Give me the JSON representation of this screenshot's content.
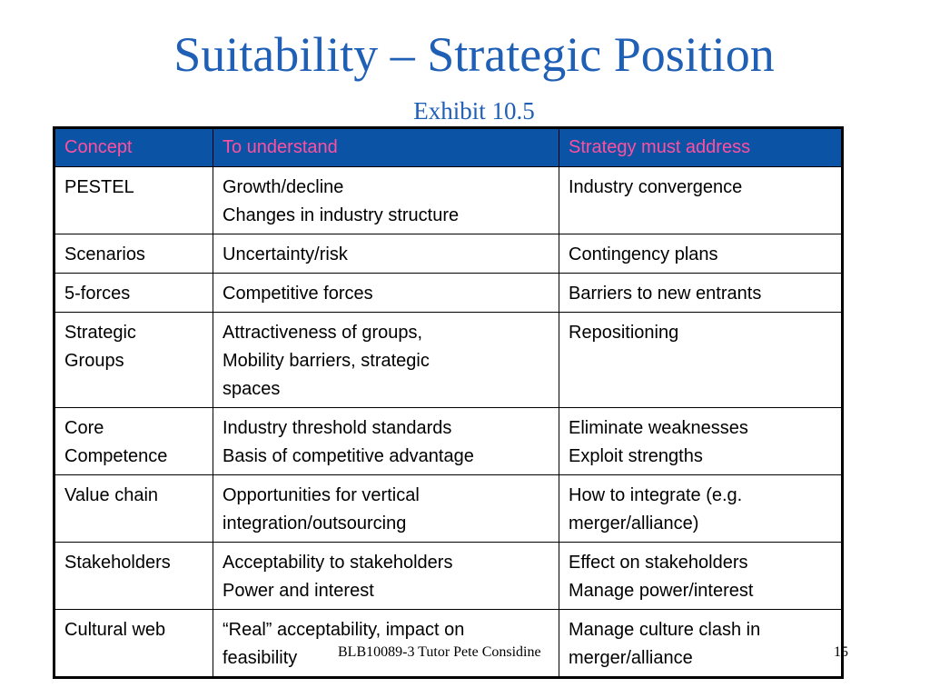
{
  "slide": {
    "title": "Suitability – Strategic Position",
    "subtitle": "Exhibit 10.5",
    "footer": "BLB10089-3 Tutor Pete Considine",
    "page_number": "15"
  },
  "table": {
    "headers": [
      "Concept",
      "To understand",
      "Strategy must address"
    ],
    "rows": [
      {
        "concept": [
          "PESTEL"
        ],
        "understand": [
          "Growth/decline",
          "Changes in industry structure"
        ],
        "address": [
          "Industry convergence"
        ]
      },
      {
        "concept": [
          "Scenarios"
        ],
        "understand": [
          "Uncertainty/risk"
        ],
        "address": [
          "Contingency plans"
        ]
      },
      {
        "concept": [
          "5-forces"
        ],
        "understand": [
          "Competitive forces"
        ],
        "address": [
          "Barriers to new entrants"
        ]
      },
      {
        "concept": [
          "Strategic",
          "Groups"
        ],
        "understand": [
          "Attractiveness of groups,",
          "Mobility barriers, strategic",
          "spaces"
        ],
        "address": [
          "Repositioning"
        ]
      },
      {
        "concept": [
          "Core",
          "Competence"
        ],
        "understand": [
          "Industry threshold standards",
          "Basis of competitive advantage"
        ],
        "address": [
          "Eliminate weaknesses",
          "Exploit strengths"
        ]
      },
      {
        "concept": [
          "Value chain"
        ],
        "understand": [
          "Opportunities for vertical",
          "integration/outsourcing"
        ],
        "address": [
          "How to integrate (e.g.",
          "merger/alliance)"
        ]
      },
      {
        "concept": [
          "Stakeholders"
        ],
        "understand": [
          "Acceptability to stakeholders",
          "Power and interest"
        ],
        "address": [
          "Effect on stakeholders",
          "Manage power/interest"
        ]
      },
      {
        "concept": [
          "Cultural web"
        ],
        "understand": [
          "“Real” acceptability, impact on",
          "feasibility"
        ],
        "address": [
          "Manage culture clash in",
          "merger/alliance"
        ]
      }
    ]
  },
  "colors": {
    "title": "#1f5fb5",
    "header_bg": "#0b53a4",
    "header_text": "#ff4fa0"
  }
}
